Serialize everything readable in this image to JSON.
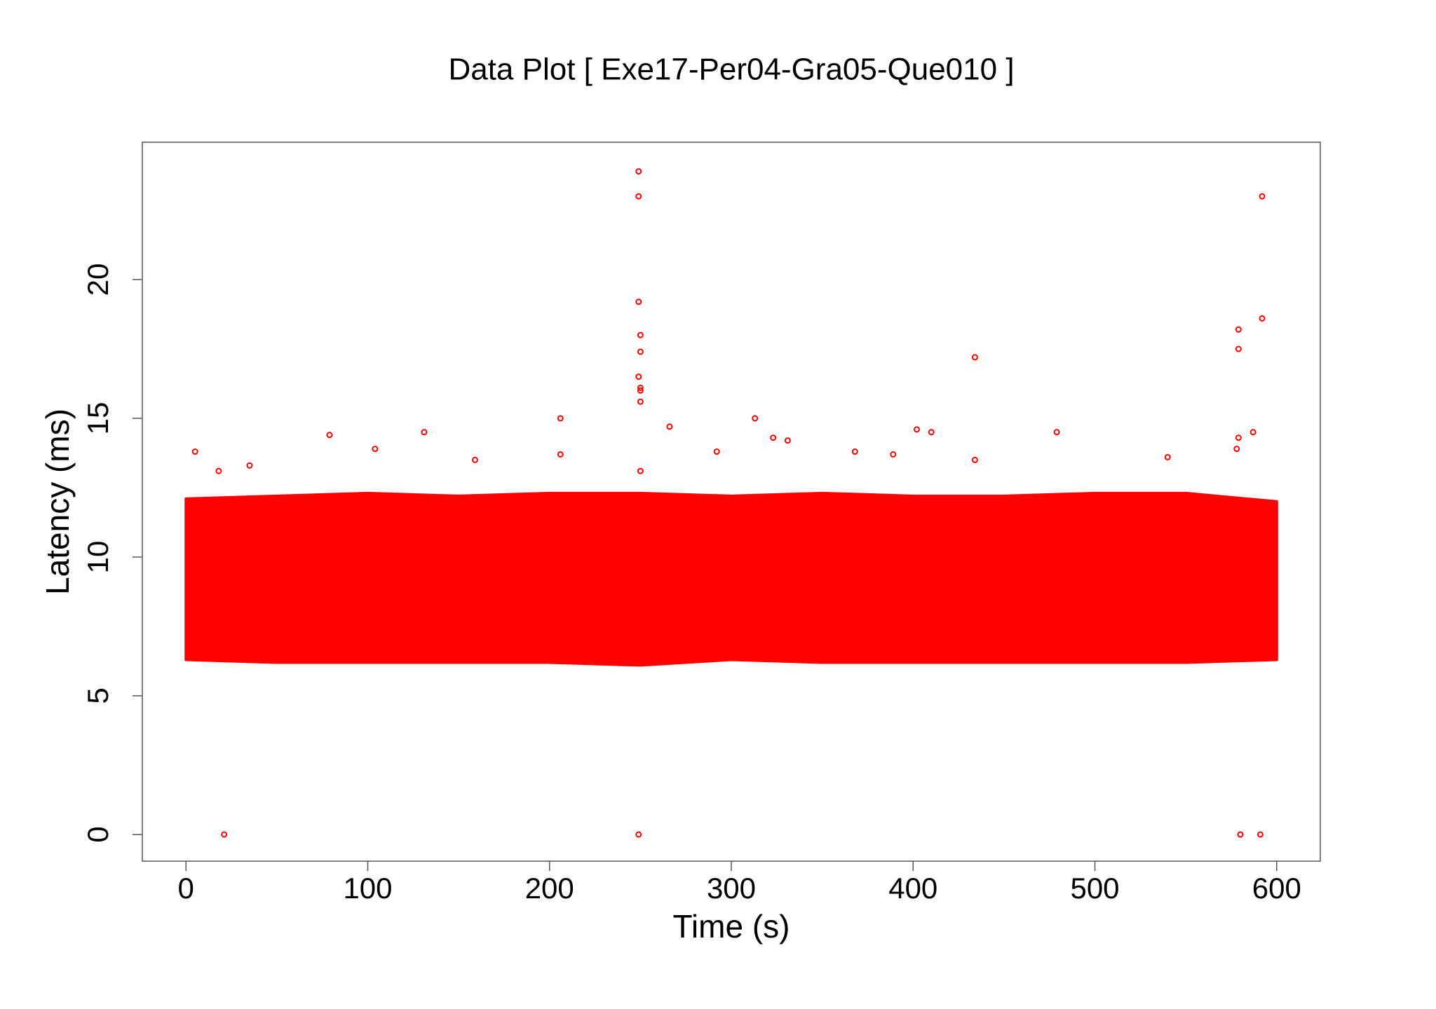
{
  "chart_data": {
    "type": "scatter",
    "title": "Data Plot [ Exe17-Per04-Gra05-Que010 ]",
    "x_label": "Time (s)",
    "y_label": "Latency (ms)",
    "color": "#ff0000",
    "xlim": [
      -24,
      624
    ],
    "ylim": [
      -0.96,
      24.95
    ],
    "xticks": [
      0,
      100,
      200,
      300,
      400,
      500,
      600
    ],
    "yticks": [
      0,
      5,
      10,
      15,
      20
    ],
    "band": {
      "x": [
        0,
        50,
        100,
        150,
        200,
        250,
        300,
        350,
        400,
        450,
        500,
        550,
        600
      ],
      "low": [
        6.3,
        6.2,
        6.2,
        6.2,
        6.2,
        6.1,
        6.3,
        6.2,
        6.2,
        6.2,
        6.2,
        6.2,
        6.3
      ],
      "high": [
        12.1,
        12.2,
        12.3,
        12.2,
        12.3,
        12.3,
        12.2,
        12.3,
        12.2,
        12.2,
        12.3,
        12.3,
        12.0
      ]
    },
    "x": [
      21,
      249,
      580,
      591,
      249,
      249,
      592,
      249,
      250,
      250,
      249,
      250,
      250,
      250,
      579,
      579,
      592,
      434,
      206,
      313,
      266,
      131,
      79,
      402,
      410,
      479,
      587,
      323,
      331,
      579,
      5,
      104,
      368,
      389,
      434,
      159,
      206,
      250,
      540,
      292,
      578,
      18,
      35
    ],
    "y": [
      0,
      0,
      0,
      0,
      23.9,
      23,
      23,
      19.2,
      18,
      17.4,
      16.5,
      16.1,
      16,
      15.6,
      18.2,
      17.5,
      18.6,
      17.2,
      15,
      15,
      14.7,
      14.5,
      14.4,
      14.6,
      14.5,
      14.5,
      14.5,
      14.3,
      14.2,
      14.3,
      13.8,
      13.9,
      13.8,
      13.7,
      13.5,
      13.5,
      13.7,
      13.1,
      13.6,
      13.8,
      13.9,
      13.1,
      13.3
    ]
  }
}
